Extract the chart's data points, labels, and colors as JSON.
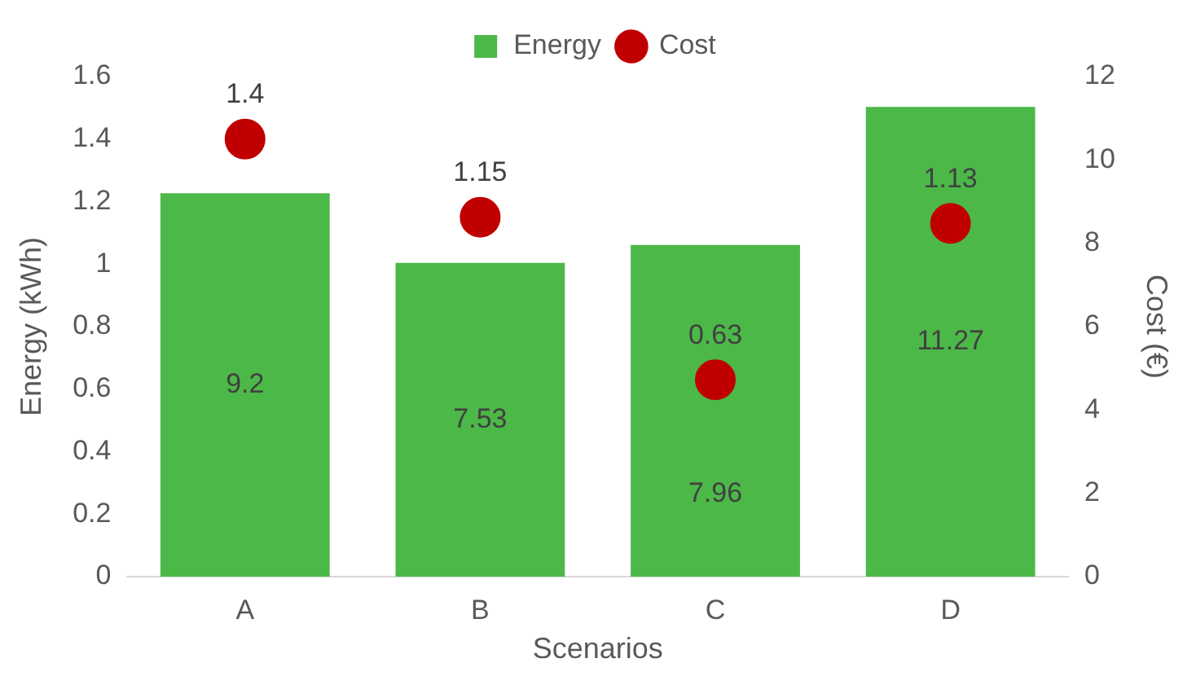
{
  "chart_data": {
    "type": "bar",
    "xlabel": "Scenarios",
    "ylabel": "Energy (kWh)",
    "y2label": "Cost (€)",
    "categories": [
      "A",
      "B",
      "C",
      "D"
    ],
    "series": [
      {
        "name": "Energy",
        "axis": "y2",
        "color": "#4cb848",
        "values": [
          9.2,
          7.53,
          7.96,
          11.27
        ]
      },
      {
        "name": "Cost",
        "type": "scatter",
        "axis": "y",
        "color": "#c00000",
        "values": [
          1.4,
          1.15,
          0.63,
          1.13
        ]
      }
    ],
    "ylim": [
      0,
      1.6
    ],
    "yticks": [
      0,
      0.2,
      0.4,
      0.6,
      0.8,
      1,
      1.2,
      1.4,
      1.6
    ],
    "y2lim": [
      0,
      12
    ],
    "y2ticks": [
      0,
      2,
      4,
      6,
      8,
      10,
      12
    ],
    "data_labels": true,
    "legend": "top",
    "grid": false,
    "marker": "circle"
  }
}
